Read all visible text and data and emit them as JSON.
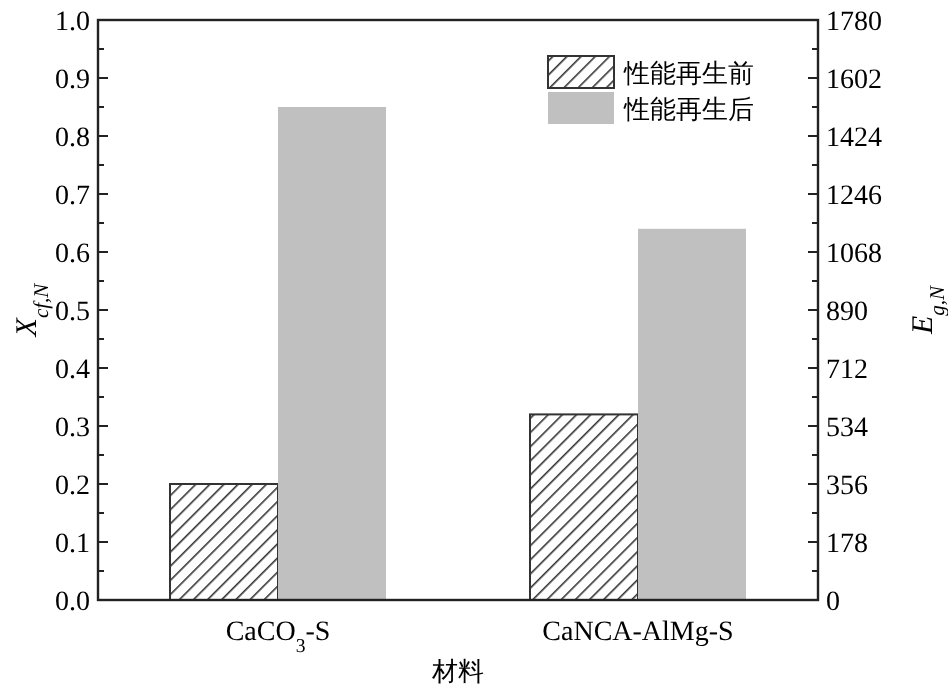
{
  "chart_data": {
    "type": "bar",
    "xlabel": "材料",
    "ylabel": "X$_{cf,N}$",
    "y2label": "E$_{g,N}$",
    "categories": [
      "CaCO$_{3}$-S",
      "CaNCA-AlMg-S"
    ],
    "series": [
      {
        "name": "性能再生前",
        "color": "#333333",
        "values": [
          0.2,
          0.32
        ]
      },
      {
        "name": "性能再生后",
        "color": "#c0c0c0",
        "values": [
          0.85,
          0.64
        ]
      }
    ],
    "ylim": [
      0,
      1
    ],
    "yticks": [
      {
        "value": 0,
        "label": "0.0"
      },
      0.1,
      0.2,
      0.3,
      0.4,
      0.5,
      0.6,
      0.7,
      0.8,
      0.9,
      {
        "value": 1,
        "label": "1.0"
      }
    ],
    "y2lim": [
      0,
      1780
    ],
    "y2ticks": [
      0,
      178,
      356,
      534,
      712,
      890,
      1068,
      1246,
      1424,
      1602,
      1780
    ],
    "legend": "top right"
  }
}
